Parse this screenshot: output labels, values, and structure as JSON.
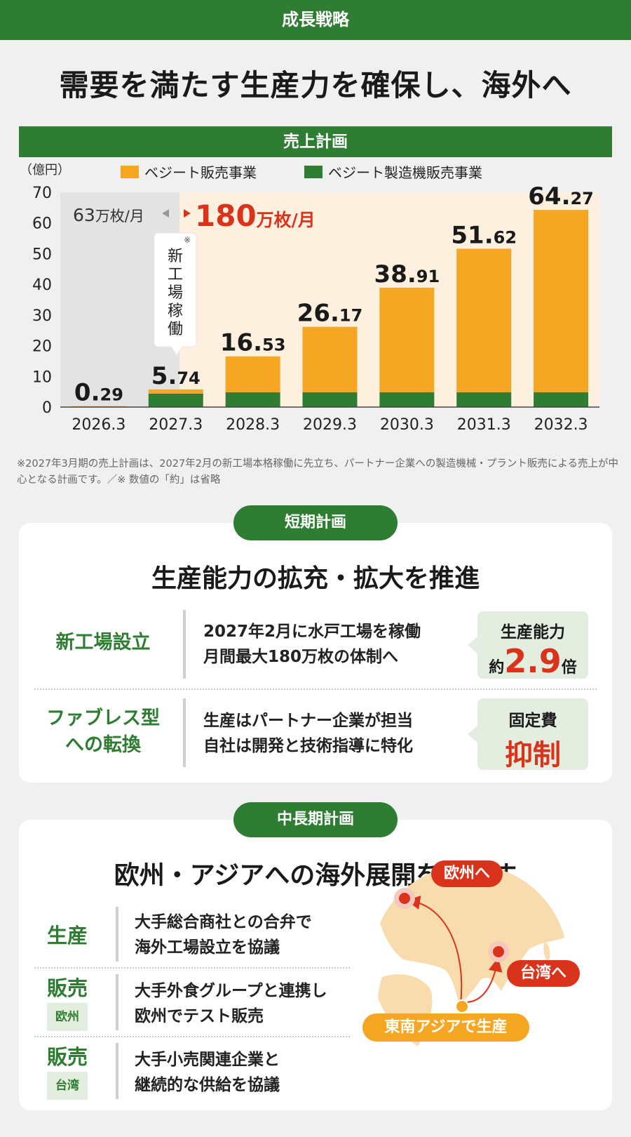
{
  "header": {
    "section": "成長戦略",
    "headline": "需要を満たす生産力を確保し、海外へ"
  },
  "chart_data": {
    "type": "bar",
    "title": "売上計画",
    "ylabel": "（億円）",
    "ylim": [
      0,
      70
    ],
    "yticks": [
      "0",
      "10",
      "20",
      "30",
      "40",
      "50",
      "60",
      "70"
    ],
    "categories": [
      "2026.3",
      "2027.3",
      "2028.3",
      "2029.3",
      "2030.3",
      "2031.3",
      "2032.3"
    ],
    "series": [
      {
        "name": "ベジート製造機販売事業",
        "color": "#2e7d32",
        "values": [
          0,
          4.4,
          4.8,
          4.8,
          4.8,
          4.8,
          4.8
        ]
      },
      {
        "name": "ベジート販売事業",
        "color": "#f5a623",
        "values": [
          0.29,
          1.34,
          11.73,
          21.37,
          34.11,
          46.82,
          59.47
        ]
      }
    ],
    "totals": [
      {
        "int": "0.",
        "dec": "29"
      },
      {
        "int": "5.",
        "dec": "74"
      },
      {
        "int": "16.",
        "dec": "53"
      },
      {
        "int": "26.",
        "dec": "17"
      },
      {
        "int": "38.",
        "dec": "91"
      },
      {
        "int": "51.",
        "dec": "62"
      },
      {
        "int": "64.",
        "dec": "27"
      }
    ],
    "capacity_before": {
      "num": "63",
      "unit": "万枚/月"
    },
    "capacity_after": {
      "num": "180",
      "unit": "万枚/月"
    },
    "annotation": {
      "mark": "※",
      "text": "新工場稼働"
    },
    "grid": false,
    "legend": "top"
  },
  "note": "※2027年3月期の売上計画は、2027年2月の新工場本格稼働に先立ち、パートナー企業への製造機械・プラント販売による売上が中心となる計画です。／※ 数値の「約」は省略",
  "short_term": {
    "pill": "短期計画",
    "title": "生産能力の拡充・拡大を推進",
    "rows": [
      {
        "label_lines": [
          "新工場設立"
        ],
        "text_lines": [
          "2027年2月に水戸工場を稼働",
          "月間最大180万枚の体制へ"
        ],
        "badge_top": "生産能力",
        "badge_prefix": "約",
        "badge_big": "2.9",
        "badge_suffix": "倍"
      },
      {
        "label_lines": [
          "ファブレス型",
          "への転換"
        ],
        "text_lines": [
          "生産はパートナー企業が担当",
          "自社は開発と技術指導に特化"
        ],
        "badge_top": "固定費",
        "badge_big": "抑制"
      }
    ]
  },
  "mid_term": {
    "pill": "中長期計画",
    "title": "欧州・アジアへの海外展開を目指す",
    "rows": [
      {
        "label": "生産",
        "sub": "",
        "text_lines": [
          "大手総合商社との合弁で",
          "海外工場設立を協議"
        ]
      },
      {
        "label": "販売",
        "sub": "欧州",
        "text_lines": [
          "大手外食グループと連携し",
          "欧州でテスト販売"
        ]
      },
      {
        "label": "販売",
        "sub": "台湾",
        "text_lines": [
          "大手小売関連企業と",
          "継続的な供給を協議"
        ]
      }
    ],
    "map": {
      "europe": "欧州へ",
      "taiwan": "台湾へ",
      "sea": "東南アジアで生産",
      "land_color": "#f9dcae",
      "arrow_color": "#d9331c"
    }
  }
}
